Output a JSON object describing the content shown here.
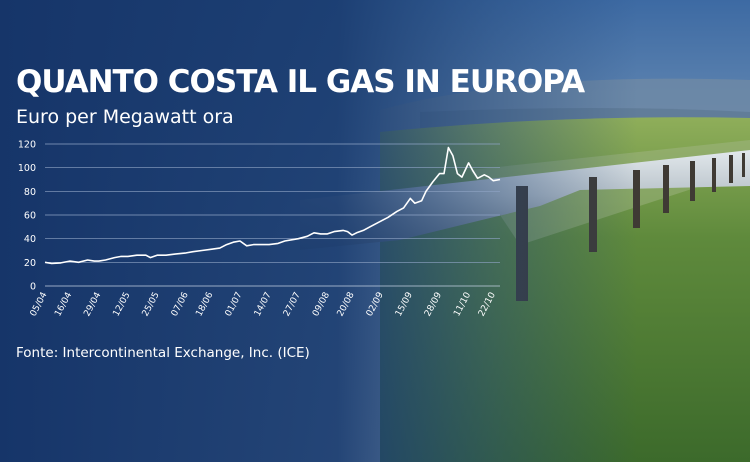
{
  "header": {
    "title": "QUANTO COSTA IL GAS IN EUROPA",
    "subtitle": "Euro per Megawatt ora"
  },
  "footer": {
    "source": "Fonte: Intercontinental Exchange, Inc. (ICE)"
  },
  "colors": {
    "panel_dark": "#17386b",
    "line": "#ffffff",
    "grid": "#8ea3c4",
    "sky": "#7e9cb8",
    "grass": "#4e7a32"
  },
  "chart_data": {
    "type": "line",
    "title": "QUANTO COSTA IL GAS IN EUROPA",
    "ylabel": "Euro per Megawatt ora",
    "ylim": [
      0,
      120
    ],
    "yticks": [
      0,
      20,
      40,
      60,
      80,
      100,
      120
    ],
    "grid": true,
    "x_tick_labels": [
      "05/04",
      "16/04",
      "29/04",
      "12/05",
      "25/05",
      "07/06",
      "18/06",
      "01/07",
      "14/07",
      "27/07",
      "09/08",
      "20/08",
      "02/09",
      "15/09",
      "28/09",
      "11/10",
      "22/10"
    ],
    "x": [
      "05/04",
      "08/04",
      "12/04",
      "16/04",
      "20/04",
      "24/04",
      "27/04",
      "29/04",
      "02/05",
      "06/05",
      "09/05",
      "12/05",
      "16/05",
      "20/05",
      "22/05",
      "25/05",
      "29/05",
      "02/06",
      "07/06",
      "10/06",
      "14/06",
      "18/06",
      "22/06",
      "25/06",
      "28/06",
      "01/07",
      "04/07",
      "07/07",
      "10/07",
      "14/07",
      "18/07",
      "21/07",
      "24/07",
      "27/07",
      "31/07",
      "03/08",
      "06/08",
      "09/08",
      "12/08",
      "16/08",
      "18/08",
      "20/08",
      "22/08",
      "25/08",
      "28/08",
      "02/09",
      "05/09",
      "09/09",
      "12/09",
      "15/09",
      "17/09",
      "20/09",
      "22/09",
      "25/09",
      "28/09",
      "30/09",
      "02/10",
      "04/10",
      "06/10",
      "08/10",
      "11/10",
      "13/10",
      "15/10",
      "18/10",
      "20/10",
      "22/10",
      "25/10"
    ],
    "values": [
      20,
      19,
      19.5,
      21,
      20,
      22,
      21,
      21,
      22,
      24,
      25,
      25,
      26,
      26,
      24,
      26,
      26,
      27,
      28,
      29,
      30,
      31,
      32,
      35,
      37,
      38,
      34,
      35,
      35,
      35,
      36,
      38,
      39,
      40,
      42,
      45,
      44,
      44,
      46,
      47,
      46,
      43,
      45,
      47,
      50,
      55,
      58,
      63,
      66,
      74,
      70,
      72,
      80,
      88,
      95,
      95,
      117,
      110,
      95,
      92,
      104,
      97,
      91,
      94,
      92,
      89,
      90
    ]
  }
}
